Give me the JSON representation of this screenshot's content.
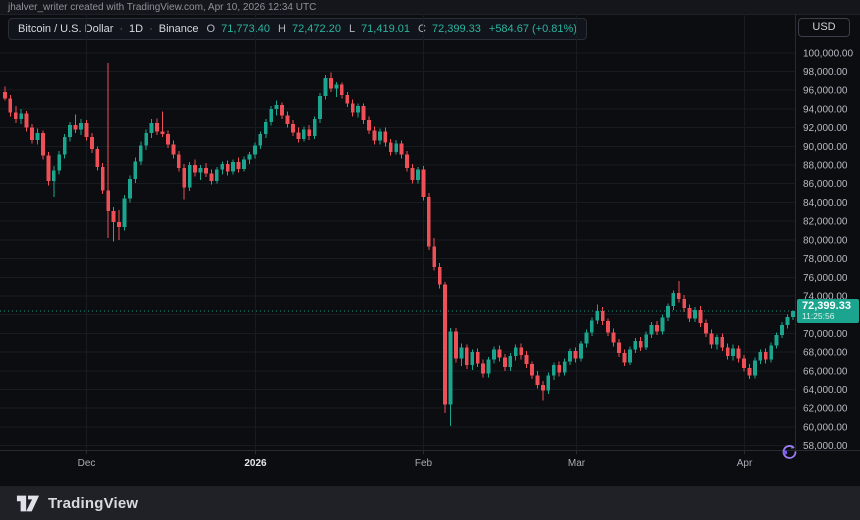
{
  "attribution": "jhalver_writer created with TradingView.com, Apr 10, 2026 12:34 UTC",
  "legend": {
    "symbol": "Bitcoin / U.S. Dollar",
    "separator": "·",
    "interval": "1D",
    "exchange": "Binance",
    "ohlc": {
      "o_label": "O",
      "open": "71,773.40",
      "h_label": "H",
      "high": "72,472.20",
      "l_label": "L",
      "low": "71,419.01",
      "c_label": "C",
      "close": "72,399.33",
      "change": "+584.67 (+0.81%)"
    }
  },
  "currency_button": "USD",
  "last_price": {
    "value": "72,399.33",
    "countdown": "11:25:56"
  },
  "footer": {
    "brand": "TradingView"
  },
  "colors": {
    "background": "#0b0d10",
    "up": "#1ba58f",
    "down": "#ef4f56",
    "grid": "#171b22",
    "axis_border": "#252a33",
    "axis_text": "#b7bac3",
    "month_text": "#a8acb5",
    "year_text": "#e3e5ea",
    "price_line": "#1ba58f",
    "badge": "#1ba58f",
    "accent_purple": "#9b7bf0"
  },
  "chart_data": {
    "type": "candlestick",
    "title": "Bitcoin / U.S. Dollar",
    "interval": "1D",
    "exchange": "Binance",
    "last_price": 72399.33,
    "y_axis": {
      "min": 58000,
      "max": 100000,
      "tick_step": 2000,
      "tick_labels": [
        "100,000.00",
        "98,000.00",
        "96,000.00",
        "94,000.00",
        "92,000.00",
        "90,000.00",
        "88,000.00",
        "86,000.00",
        "84,000.00",
        "82,000.00",
        "80,000.00",
        "78,000.00",
        "76,000.00",
        "74,000.00",
        "72,000.00",
        "70,000.00",
        "68,000.00",
        "66,000.00",
        "64,000.00",
        "62,000.00",
        "60,000.00",
        "58,000.00"
      ]
    },
    "x_axis": {
      "tick_labels": [
        "Dec",
        "2026",
        "Feb",
        "Mar",
        "Apr"
      ],
      "tick_candle_indices": [
        15,
        46,
        77,
        105,
        136
      ],
      "bold_label_index": 1
    },
    "candles_ohlc_thousands": [
      [
        95.8,
        96.4,
        94.9,
        95.1
      ],
      [
        95.1,
        95.5,
        93.2,
        93.6
      ],
      [
        93.6,
        94.3,
        92.5,
        92.9
      ],
      [
        92.9,
        94.0,
        92.4,
        93.5
      ],
      [
        93.5,
        93.8,
        91.6,
        92.0
      ],
      [
        92.0,
        92.4,
        90.3,
        90.7
      ],
      [
        90.7,
        91.9,
        90.2,
        91.4
      ],
      [
        91.4,
        91.7,
        88.6,
        89.0
      ],
      [
        89.0,
        89.4,
        85.8,
        86.3
      ],
      [
        86.3,
        87.9,
        84.6,
        87.4
      ],
      [
        87.4,
        89.5,
        87.0,
        89.1
      ],
      [
        89.1,
        91.3,
        88.7,
        91.0
      ],
      [
        91.0,
        92.6,
        90.5,
        92.3
      ],
      [
        92.3,
        93.4,
        91.4,
        91.8
      ],
      [
        91.8,
        92.9,
        91.2,
        92.5
      ],
      [
        92.5,
        92.8,
        90.6,
        91.0
      ],
      [
        91.0,
        91.4,
        89.3,
        89.7
      ],
      [
        89.7,
        90.0,
        87.4,
        87.8
      ],
      [
        87.8,
        88.2,
        84.9,
        85.3
      ],
      [
        85.3,
        98.9,
        80.2,
        83.1
      ],
      [
        83.1,
        83.5,
        79.8,
        81.9
      ],
      [
        81.9,
        83.2,
        80.0,
        81.4
      ],
      [
        81.4,
        84.8,
        81.0,
        84.4
      ],
      [
        84.4,
        86.9,
        84.0,
        86.5
      ],
      [
        86.5,
        88.8,
        86.1,
        88.4
      ],
      [
        88.4,
        90.5,
        88.0,
        90.1
      ],
      [
        90.1,
        91.8,
        89.6,
        91.4
      ],
      [
        91.4,
        92.9,
        90.9,
        92.5
      ],
      [
        92.5,
        93.0,
        91.2,
        91.6
      ],
      [
        91.6,
        93.7,
        91.0,
        91.3
      ],
      [
        91.3,
        91.7,
        89.8,
        90.2
      ],
      [
        90.2,
        90.6,
        88.7,
        89.1
      ],
      [
        89.1,
        89.5,
        87.3,
        87.7
      ],
      [
        87.7,
        88.1,
        84.3,
        85.6
      ],
      [
        85.6,
        88.3,
        85.2,
        88.0
      ],
      [
        88.0,
        88.6,
        86.8,
        87.2
      ],
      [
        87.2,
        88.0,
        86.4,
        87.7
      ],
      [
        87.7,
        88.2,
        86.7,
        87.1
      ],
      [
        87.1,
        87.5,
        85.9,
        86.3
      ],
      [
        86.3,
        87.8,
        86.0,
        87.5
      ],
      [
        87.5,
        88.4,
        87.0,
        88.1
      ],
      [
        88.1,
        88.5,
        86.9,
        87.3
      ],
      [
        87.3,
        88.6,
        87.0,
        88.3
      ],
      [
        88.3,
        88.8,
        87.2,
        87.6
      ],
      [
        87.6,
        88.9,
        87.3,
        88.6
      ],
      [
        88.6,
        89.4,
        88.1,
        89.1
      ],
      [
        89.1,
        90.4,
        88.7,
        90.1
      ],
      [
        90.1,
        91.6,
        89.7,
        91.3
      ],
      [
        91.3,
        92.9,
        90.9,
        92.6
      ],
      [
        92.6,
        94.3,
        92.2,
        94.0
      ],
      [
        94.0,
        94.9,
        93.3,
        94.4
      ],
      [
        94.4,
        94.7,
        92.9,
        93.3
      ],
      [
        93.3,
        93.7,
        92.0,
        92.4
      ],
      [
        92.4,
        92.8,
        91.1,
        91.5
      ],
      [
        91.5,
        92.0,
        90.4,
        90.8
      ],
      [
        90.8,
        92.1,
        90.5,
        91.8
      ],
      [
        91.8,
        92.3,
        90.7,
        91.1
      ],
      [
        91.1,
        93.2,
        90.8,
        92.9
      ],
      [
        92.9,
        95.7,
        92.5,
        95.4
      ],
      [
        95.4,
        97.6,
        95.0,
        97.3
      ],
      [
        97.3,
        97.9,
        95.8,
        96.2
      ],
      [
        96.2,
        96.9,
        95.3,
        96.6
      ],
      [
        96.6,
        96.8,
        95.1,
        95.5
      ],
      [
        95.5,
        95.8,
        94.2,
        94.6
      ],
      [
        94.6,
        95.0,
        93.2,
        93.6
      ],
      [
        93.6,
        94.6,
        93.1,
        94.3
      ],
      [
        94.3,
        94.6,
        92.4,
        92.8
      ],
      [
        92.8,
        93.2,
        91.3,
        91.7
      ],
      [
        91.7,
        92.1,
        90.2,
        90.6
      ],
      [
        90.6,
        91.9,
        90.2,
        91.6
      ],
      [
        91.6,
        92.0,
        90.0,
        90.4
      ],
      [
        90.4,
        90.8,
        89.0,
        89.4
      ],
      [
        89.4,
        90.7,
        89.1,
        90.3
      ],
      [
        90.3,
        90.6,
        88.7,
        89.1
      ],
      [
        89.1,
        89.5,
        87.3,
        87.7
      ],
      [
        87.7,
        88.1,
        86.0,
        86.4
      ],
      [
        86.4,
        87.8,
        86.0,
        87.5
      ],
      [
        87.5,
        87.9,
        84.2,
        84.6
      ],
      [
        84.6,
        85.0,
        78.9,
        79.3
      ],
      [
        79.3,
        80.2,
        76.7,
        77.1
      ],
      [
        77.1,
        77.5,
        74.8,
        75.2
      ],
      [
        75.2,
        75.5,
        61.5,
        62.4
      ],
      [
        62.4,
        70.6,
        60.1,
        70.2
      ],
      [
        70.2,
        70.6,
        66.9,
        67.3
      ],
      [
        67.3,
        68.9,
        66.5,
        68.5
      ],
      [
        68.5,
        68.8,
        66.2,
        66.6
      ],
      [
        66.6,
        68.3,
        66.1,
        68.0
      ],
      [
        68.0,
        68.4,
        66.4,
        66.8
      ],
      [
        66.8,
        67.2,
        65.3,
        65.7
      ],
      [
        65.7,
        67.5,
        65.3,
        67.2
      ],
      [
        67.2,
        68.6,
        66.8,
        68.3
      ],
      [
        68.3,
        68.7,
        67.0,
        67.4
      ],
      [
        67.4,
        67.8,
        66.0,
        66.4
      ],
      [
        66.4,
        67.9,
        66.0,
        67.6
      ],
      [
        67.6,
        68.8,
        67.1,
        68.5
      ],
      [
        68.5,
        68.9,
        67.2,
        67.7
      ],
      [
        67.7,
        68.1,
        66.3,
        66.7
      ],
      [
        66.7,
        67.0,
        65.1,
        65.5
      ],
      [
        65.5,
        66.0,
        64.1,
        64.5
      ],
      [
        64.5,
        64.9,
        62.8,
        63.9
      ],
      [
        63.9,
        65.8,
        63.5,
        65.5
      ],
      [
        65.5,
        66.9,
        65.0,
        66.6
      ],
      [
        66.6,
        67.0,
        65.4,
        65.8
      ],
      [
        65.8,
        67.3,
        65.5,
        67.0
      ],
      [
        67.0,
        68.4,
        66.6,
        68.1
      ],
      [
        68.1,
        68.5,
        66.9,
        67.3
      ],
      [
        67.3,
        69.2,
        67.0,
        68.9
      ],
      [
        68.9,
        70.4,
        68.5,
        70.1
      ],
      [
        70.1,
        71.7,
        69.7,
        71.4
      ],
      [
        71.4,
        73.1,
        71.0,
        72.4
      ],
      [
        72.4,
        72.8,
        70.9,
        71.3
      ],
      [
        71.3,
        71.6,
        69.7,
        70.1
      ],
      [
        70.1,
        70.5,
        68.6,
        69.0
      ],
      [
        69.0,
        69.4,
        67.5,
        67.9
      ],
      [
        67.9,
        68.3,
        66.5,
        66.9
      ],
      [
        66.9,
        68.6,
        66.6,
        68.3
      ],
      [
        68.3,
        69.5,
        67.9,
        69.2
      ],
      [
        69.2,
        69.6,
        68.1,
        68.5
      ],
      [
        68.5,
        70.2,
        68.2,
        69.9
      ],
      [
        69.9,
        71.2,
        69.5,
        70.9
      ],
      [
        70.9,
        71.3,
        69.8,
        70.2
      ],
      [
        70.2,
        72.0,
        69.9,
        71.7
      ],
      [
        71.7,
        73.2,
        71.3,
        72.9
      ],
      [
        72.9,
        74.6,
        72.5,
        74.3
      ],
      [
        74.3,
        75.6,
        73.3,
        73.7
      ],
      [
        73.7,
        74.1,
        72.3,
        72.7
      ],
      [
        72.7,
        73.1,
        71.2,
        71.6
      ],
      [
        71.6,
        72.8,
        71.2,
        72.5
      ],
      [
        72.5,
        72.9,
        70.7,
        71.1
      ],
      [
        71.1,
        71.5,
        69.6,
        70.0
      ],
      [
        70.0,
        70.4,
        68.4,
        68.8
      ],
      [
        68.8,
        69.9,
        68.3,
        69.6
      ],
      [
        69.6,
        70.0,
        68.1,
        68.5
      ],
      [
        68.5,
        68.9,
        67.2,
        67.6
      ],
      [
        67.6,
        68.8,
        67.1,
        68.4
      ],
      [
        68.4,
        68.7,
        66.9,
        67.3
      ],
      [
        67.3,
        67.7,
        65.9,
        66.3
      ],
      [
        66.3,
        66.7,
        65.1,
        65.5
      ],
      [
        65.5,
        67.4,
        65.2,
        67.1
      ],
      [
        67.1,
        68.3,
        66.7,
        68.0
      ],
      [
        68.0,
        68.4,
        66.8,
        67.2
      ],
      [
        67.2,
        69.0,
        66.9,
        68.7
      ],
      [
        68.7,
        70.1,
        68.4,
        69.8
      ],
      [
        69.8,
        71.2,
        69.5,
        70.9
      ],
      [
        70.9,
        72.0,
        70.5,
        71.773
      ],
      [
        71.773,
        72.472,
        71.419,
        72.399
      ]
    ]
  }
}
